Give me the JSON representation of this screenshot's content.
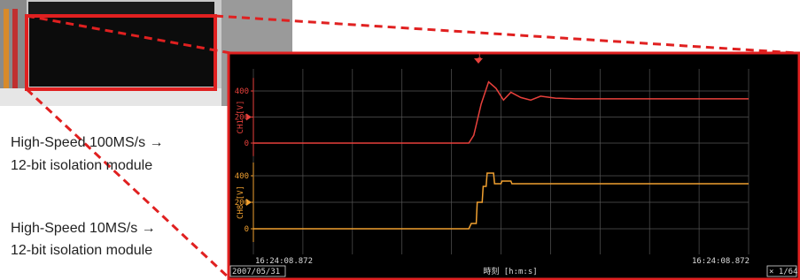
{
  "annotations": [
    "High-Speed 100MS/s →",
    "12-bit isolation module",
    "High-Speed 10MS/s →",
    "12-bit isolation module"
  ],
  "chart_data": {
    "type": "line",
    "trigger_marker": "1",
    "start_time": "16:24:08.872",
    "end_time": "16:24:08.872",
    "date": "2007/05/31",
    "xlabel": "時刻 [h:m:s]",
    "zoom": "× 1/64",
    "xlim": [
      0,
      100
    ],
    "grid": true,
    "series": [
      {
        "name": "CH1 [V]",
        "color": "#e8413c",
        "ylim": [
          -100,
          500
        ],
        "yticks": [
          0,
          200,
          400
        ],
        "x": [
          0,
          43.5,
          44.5,
          46,
          47.5,
          49,
          50.5,
          52,
          54,
          56,
          58,
          61,
          65,
          100
        ],
        "values": [
          0,
          0,
          60,
          300,
          470,
          420,
          330,
          390,
          350,
          330,
          360,
          345,
          340,
          340
        ]
      },
      {
        "name": "CH8 [V]",
        "color": "#f0a030",
        "ylim": [
          -100,
          500
        ],
        "yticks": [
          0,
          200,
          400
        ],
        "x": [
          0,
          43.5,
          44,
          45,
          45.2,
          46.2,
          46.4,
          47,
          47.2,
          48.5,
          48.7,
          50,
          50.2,
          52,
          52.2,
          100
        ],
        "values": [
          0,
          0,
          40,
          40,
          200,
          200,
          320,
          320,
          420,
          420,
          340,
          340,
          360,
          360,
          340,
          340
        ]
      }
    ]
  }
}
